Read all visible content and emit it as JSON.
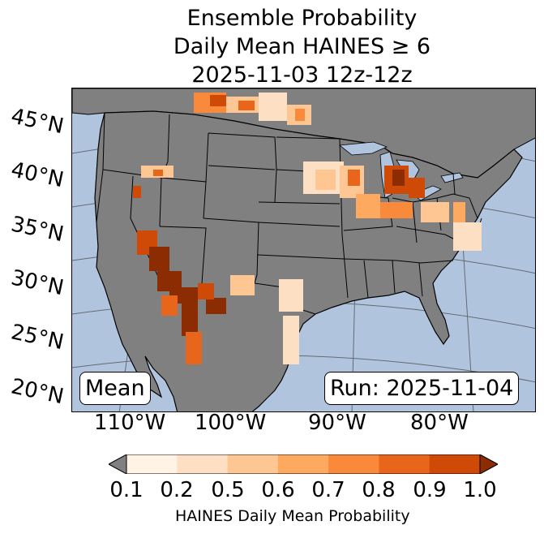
{
  "title": {
    "line1": "Ensemble Probability",
    "line2": "Daily Mean HAINES ≥ 6",
    "line3": "2025-11-03 12z-12z"
  },
  "map": {
    "lat_labels": [
      "45°N",
      "40°N",
      "35°N",
      "30°N",
      "25°N",
      "20°N"
    ],
    "lon_labels": [
      "110°W",
      "100°W",
      "90°W",
      "80°W"
    ],
    "ocean_color": "#b0c4de",
    "land_color": "#808080",
    "mean_label": "Mean",
    "run_label": "Run: 2025-11-04"
  },
  "colorbar": {
    "ticks": [
      "0.1",
      "0.2",
      "0.5",
      "0.6",
      "0.7",
      "0.8",
      "0.9",
      "1.0"
    ],
    "colors": [
      "#fff3e6",
      "#fde0c3",
      "#fdc692",
      "#fda95f",
      "#f98a3b",
      "#e8661c",
      "#d04a07",
      "#8c2c03"
    ],
    "under_color": "#808080",
    "label": "HAINES Daily Mean Probability"
  }
}
